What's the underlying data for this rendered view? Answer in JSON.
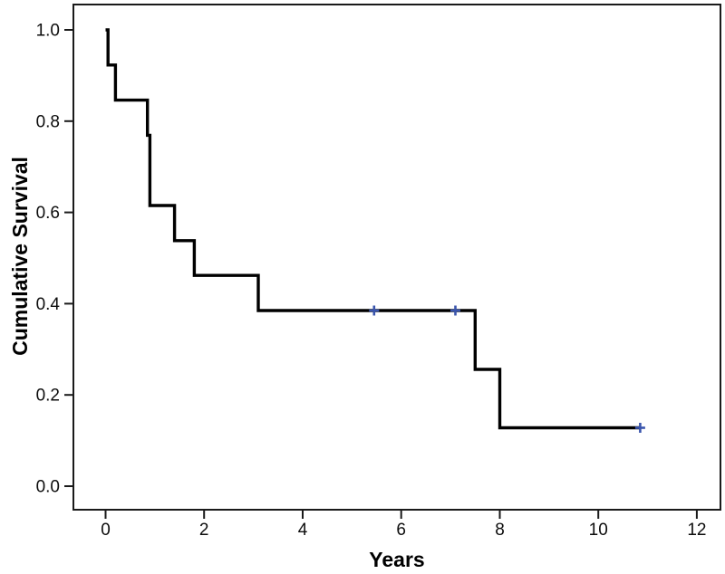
{
  "window": {
    "background": "#ffffff"
  },
  "chart_data": {
    "type": "line",
    "subtype": "kaplan_meier_step_function",
    "title": "",
    "xlabel": "Years",
    "ylabel": "Cumulative Survival",
    "xlim": [
      -0.65,
      12.5
    ],
    "ylim": [
      -0.052,
      1.056
    ],
    "x_ticks": [
      "0",
      "2",
      "4",
      "6",
      "8",
      "10",
      "12"
    ],
    "y_ticks": [
      "0.0",
      "0.2",
      "0.4",
      "0.6",
      "0.8",
      "1.0"
    ],
    "grid": false,
    "legend": "none",
    "line_color": "#000000",
    "censor_color": "#3a55ad",
    "series": [
      {
        "name": "Cumulative Survival",
        "start": {
          "time": 0,
          "survival": 1.0
        },
        "steps": [
          {
            "time": 0.05,
            "survival": 0.923
          },
          {
            "time": 0.2,
            "survival": 0.846
          },
          {
            "time": 0.85,
            "survival": 0.769
          },
          {
            "time": 0.9,
            "survival": 0.615
          },
          {
            "time": 1.4,
            "survival": 0.538
          },
          {
            "time": 1.8,
            "survival": 0.462
          },
          {
            "time": 3.1,
            "survival": 0.385
          },
          {
            "time": 7.5,
            "survival": 0.256
          },
          {
            "time": 8.0,
            "survival": 0.128
          }
        ],
        "end_time": 10.85,
        "censored": [
          {
            "time": 5.45,
            "survival": 0.385
          },
          {
            "time": 7.1,
            "survival": 0.385
          },
          {
            "time": 10.85,
            "survival": 0.128
          }
        ]
      }
    ]
  }
}
